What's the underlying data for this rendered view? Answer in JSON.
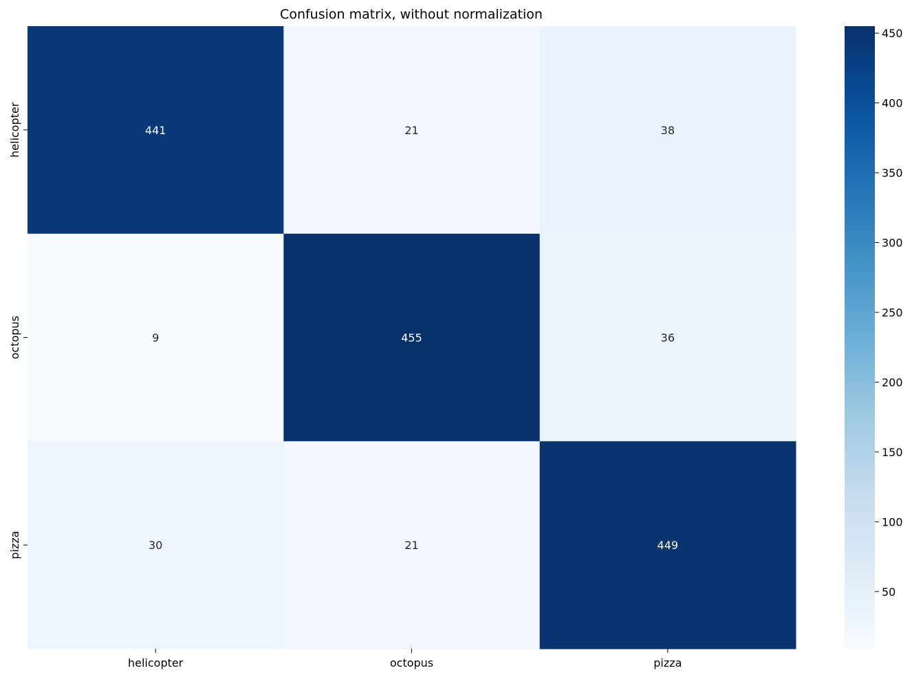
{
  "chart_data": {
    "type": "heatmap",
    "title": "Confusion matrix, without normalization",
    "xlabel": "",
    "ylabel": "",
    "x_categories": [
      "helicopter",
      "octopus",
      "pizza"
    ],
    "y_categories": [
      "helicopter",
      "octopus",
      "pizza"
    ],
    "values": [
      [
        441,
        21,
        38
      ],
      [
        9,
        455,
        36
      ],
      [
        30,
        21,
        449
      ]
    ],
    "colormap": "Blues",
    "colorbar": {
      "vmin": 9,
      "vmax": 455,
      "ticks": [
        50,
        100,
        150,
        200,
        250,
        300,
        350,
        400,
        450
      ]
    },
    "annotations": true,
    "grid": false,
    "colors": {
      "annotation_light": "#ffffff",
      "annotation_dark": "#262626",
      "tick_color": "#000000"
    }
  }
}
